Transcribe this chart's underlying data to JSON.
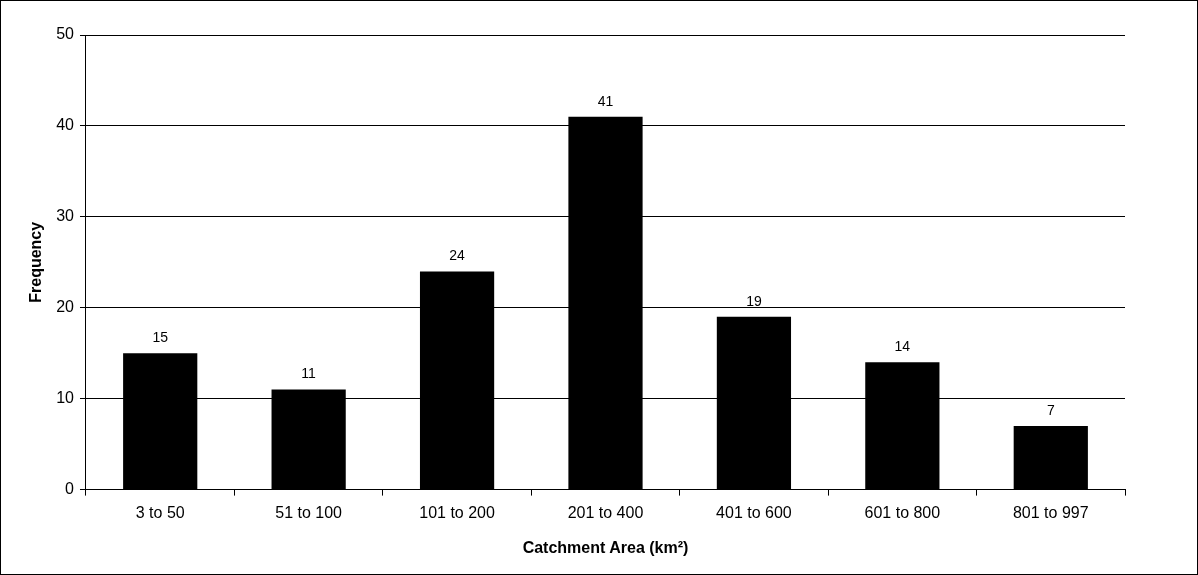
{
  "chart_data": {
    "type": "bar",
    "xlabel": "Catchment Area (km²)",
    "ylabel": "Frequency",
    "categories": [
      "3 to 50",
      "51 to 100",
      "101 to 200",
      "201 to 400",
      "401 to 600",
      "601 to 800",
      "801 to 997"
    ],
    "values": [
      15,
      11,
      24,
      41,
      19,
      14,
      7
    ],
    "color": "#000000",
    "ylim": [
      0,
      50
    ],
    "yticks": [
      0,
      10,
      20,
      30,
      40,
      50
    ],
    "grid": "y",
    "data_labels": true,
    "legend": false
  }
}
